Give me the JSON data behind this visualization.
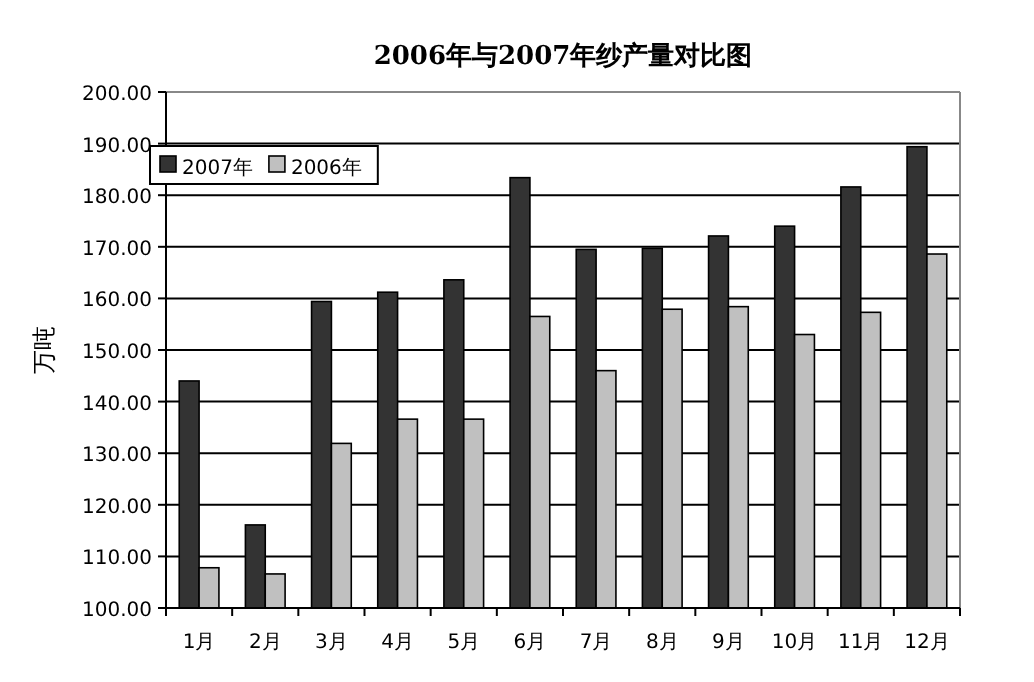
{
  "chart_data": {
    "type": "bar",
    "title": "2006年与2007年纱产量对比图",
    "ylabel": "万吨",
    "categories": [
      "1月",
      "2月",
      "3月",
      "4月",
      "5月",
      "6月",
      "7月",
      "8月",
      "9月",
      "10月",
      "11月",
      "12月"
    ],
    "series": [
      {
        "name": "2007年",
        "color": "#333333",
        "values": [
          144.0,
          116.1,
          159.4,
          161.2,
          163.6,
          183.4,
          169.5,
          169.7,
          172.1,
          174.0,
          181.6,
          189.4
        ]
      },
      {
        "name": "2006年",
        "color": "#c0c0c0",
        "values": [
          107.8,
          106.6,
          131.9,
          136.6,
          136.6,
          156.5,
          146.0,
          157.9,
          158.4,
          153.0,
          157.3,
          168.6
        ]
      }
    ],
    "ylim": [
      100,
      200
    ],
    "yticks": [
      {
        "value": 100,
        "label": "100.00"
      },
      {
        "value": 110,
        "label": "110.00"
      },
      {
        "value": 120,
        "label": "120.00"
      },
      {
        "value": 130,
        "label": "130.00"
      },
      {
        "value": 140,
        "label": "140.00"
      },
      {
        "value": 150,
        "label": "150.00"
      },
      {
        "value": 160,
        "label": "160.00"
      },
      {
        "value": 170,
        "label": "170.00"
      },
      {
        "value": 180,
        "label": "180.00"
      },
      {
        "value": 190,
        "label": "190.00"
      },
      {
        "value": 200,
        "label": "200.00"
      }
    ],
    "grid": "y",
    "legend": "top left"
  }
}
